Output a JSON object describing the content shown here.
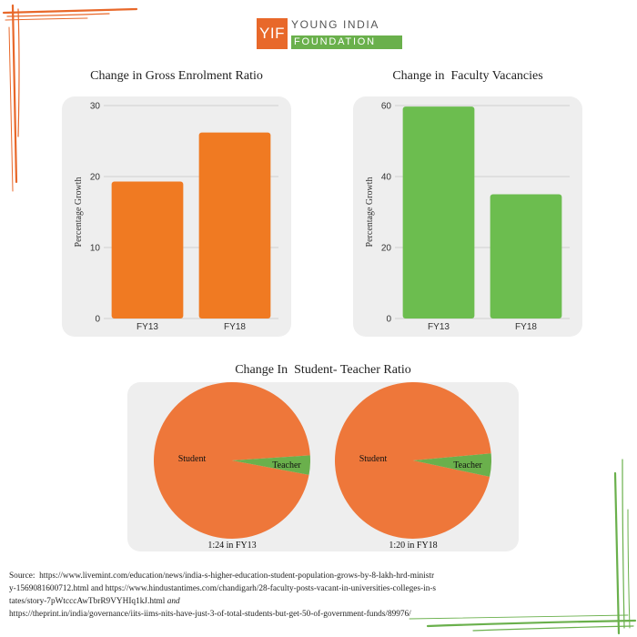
{
  "logo": {
    "mark": "YIF",
    "line1": "YOUNG INDIA",
    "line2": "FOUNDATION",
    "colors": {
      "orange": "#e8682a",
      "green": "#6ab04c"
    }
  },
  "colors": {
    "orange_bar": "#f07a22",
    "green_bar": "#6cbd4f",
    "pie_student": "#ee773a",
    "pie_teacher": "#6ab04c",
    "panel_bg": "#eeeeee",
    "grid": "#d0d0d0"
  },
  "chart_data": [
    {
      "type": "bar",
      "title": "Change in Gross Enrolment Ratio",
      "ylabel": "Percentage Growth",
      "xlabel": "",
      "categories": [
        "FY13",
        "FY18"
      ],
      "values": [
        19.3,
        26.2
      ],
      "ylim": [
        0,
        30
      ],
      "yticks": [
        "0",
        "10",
        "20",
        "30"
      ],
      "grid": true
    },
    {
      "type": "bar",
      "title": "Change in  Faculty Vacancies",
      "ylabel": "Percentage Growth",
      "xlabel": "",
      "categories": [
        "FY13",
        "FY18"
      ],
      "values": [
        59.7,
        35.0
      ],
      "ylim": [
        0,
        60
      ],
      "yticks": [
        "0",
        "20",
        "40",
        "60"
      ],
      "grid": true
    },
    {
      "type": "pie",
      "title": "Change In  Student- Teacher Ratio",
      "pies": [
        {
          "caption": "1:24 in FY13",
          "slices": [
            {
              "label": "Student",
              "value": 24
            },
            {
              "label": "Teacher",
              "value": 1
            }
          ]
        },
        {
          "caption": "1:20 in FY18",
          "slices": [
            {
              "label": "Student",
              "value": 20
            },
            {
              "label": "Teacher",
              "value": 1
            }
          ]
        }
      ]
    }
  ],
  "source": {
    "label": "Source:",
    "text1": "https://www.livemint.com/education/news/india-s-higher-education-student-population-grows-by-8-lakh-hrd-ministry-1569081600712.html and https://www.hindustantimes.com/chandigarh/28-faculty-posts-vacant-in-universities-colleges-in-states/story-7pWtcccAwTbrR9VYHIq1kJ.html",
    "conj": "and",
    "text2": "https://theprint.in/india/governance/iits-iims-nits-have-just-3-of-total-students-but-get-50-of-government-funds/89976/"
  }
}
